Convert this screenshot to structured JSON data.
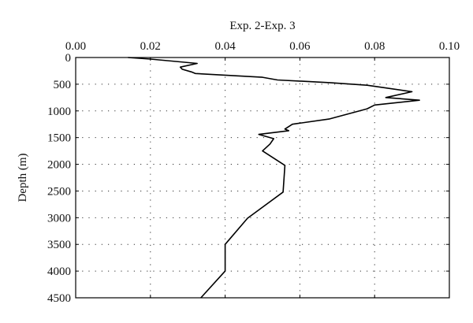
{
  "chart_data": {
    "type": "line",
    "title": "Exp. 2-Exp. 3",
    "xlabel": "",
    "ylabel": "Depth (m)",
    "x_axis_position": "top",
    "y_axis_inverted": true,
    "xlim": [
      0,
      0.1
    ],
    "ylim": [
      0,
      4500
    ],
    "xticks": [
      0,
      0.02,
      0.04,
      0.06,
      0.08,
      0.1
    ],
    "xtick_labels": [
      "0.00",
      "0.02",
      "0.04",
      "0.06",
      "0.08",
      "0.10"
    ],
    "yticks": [
      0,
      500,
      1000,
      1500,
      2000,
      2500,
      3000,
      3500,
      4000,
      4500
    ],
    "ytick_labels": [
      "0",
      "500",
      "1000",
      "1500",
      "2000",
      "2500",
      "3000",
      "3500",
      "4000",
      "4500"
    ],
    "grid": true,
    "line_color": "#000000",
    "series": [
      {
        "x": [
          0.014,
          0.02,
          0.0325,
          0.028,
          0.0285,
          0.031,
          0.032,
          0.05,
          0.054,
          0.068,
          0.078,
          0.09,
          0.083,
          0.092,
          0.08,
          0.078,
          0.068,
          0.058,
          0.056,
          0.057,
          0.049,
          0.053,
          0.052,
          0.05,
          0.056,
          0.0555,
          0.046,
          0.04,
          0.04,
          0.0335
        ],
        "y": [
          0,
          30,
          110,
          180,
          220,
          270,
          300,
          370,
          420,
          470,
          520,
          640,
          750,
          800,
          890,
          960,
          1150,
          1250,
          1340,
          1370,
          1440,
          1520,
          1620,
          1750,
          2020,
          2520,
          3010,
          3500,
          4000,
          4500
        ]
      }
    ]
  }
}
